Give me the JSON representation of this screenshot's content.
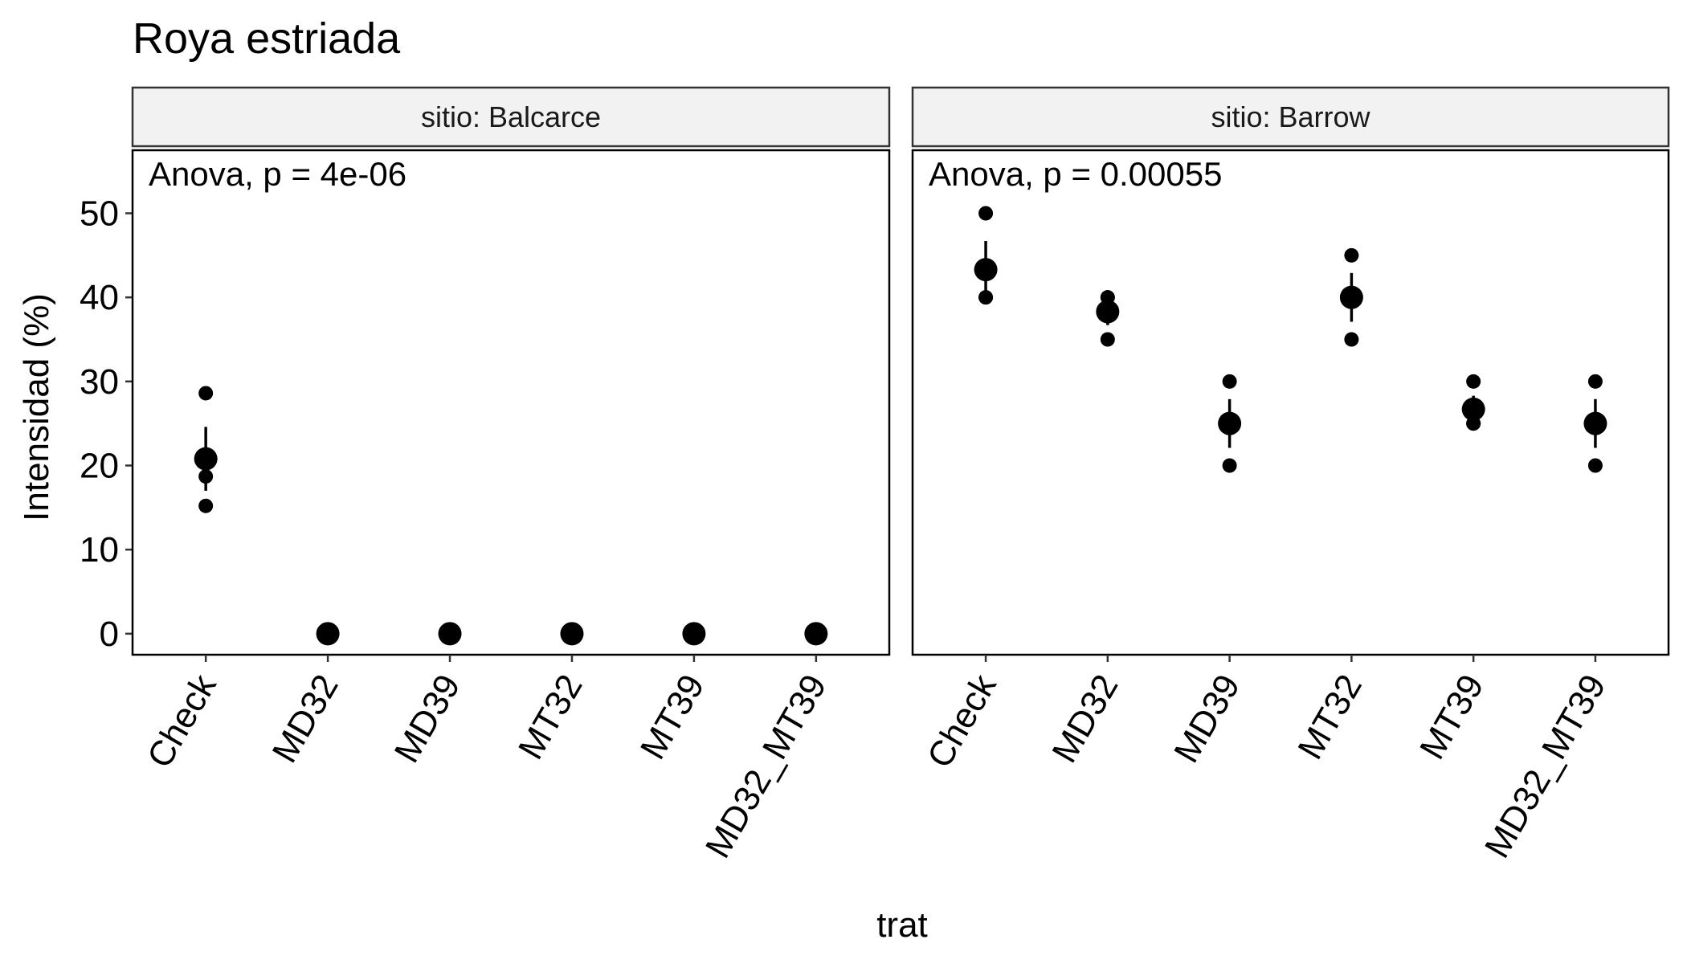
{
  "chart_data": {
    "type": "scatter",
    "title": "Roya estriada",
    "xlabel": "trat",
    "ylabel": "Intensidad (%)",
    "ylim": [
      -2.5,
      57.5
    ],
    "yticks": [
      0,
      10,
      20,
      30,
      40,
      50
    ],
    "categories": [
      "Check",
      "MD32",
      "MD39",
      "MT32",
      "MT39",
      "MD32_MT39"
    ],
    "facet_label_prefix": "sitio: ",
    "panels": [
      {
        "facet": "Balcarce",
        "strip_label": "sitio: Balcarce",
        "annotation": "Anova, p = 4e-06",
        "summary": [
          {
            "trat": "Check",
            "mean": 20.8,
            "lower": 17.0,
            "upper": 24.6
          },
          {
            "trat": "MD32",
            "mean": 0,
            "lower": 0,
            "upper": 0
          },
          {
            "trat": "MD39",
            "mean": 0,
            "lower": 0,
            "upper": 0
          },
          {
            "trat": "MT32",
            "mean": 0,
            "lower": 0,
            "upper": 0
          },
          {
            "trat": "MT39",
            "mean": 0,
            "lower": 0,
            "upper": 0
          },
          {
            "trat": "MD32_MT39",
            "mean": 0,
            "lower": 0,
            "upper": 0
          }
        ],
        "observations": [
          {
            "trat": "Check",
            "values": [
              28.6,
              18.7,
              15.2
            ]
          },
          {
            "trat": "MD32",
            "values": [
              0,
              0,
              0
            ]
          },
          {
            "trat": "MD39",
            "values": [
              0,
              0,
              0
            ]
          },
          {
            "trat": "MT32",
            "values": [
              0,
              0,
              0
            ]
          },
          {
            "trat": "MT39",
            "values": [
              0,
              0,
              0
            ]
          },
          {
            "trat": "MD32_MT39",
            "values": [
              0,
              0,
              0
            ]
          }
        ]
      },
      {
        "facet": "Barrow",
        "strip_label": "sitio: Barrow",
        "annotation": "Anova, p = 0.00055",
        "summary": [
          {
            "trat": "Check",
            "mean": 43.3,
            "lower": 40.0,
            "upper": 46.7
          },
          {
            "trat": "MD32",
            "mean": 38.3,
            "lower": 36.7,
            "upper": 40.0
          },
          {
            "trat": "MD39",
            "mean": 25.0,
            "lower": 22.1,
            "upper": 27.9
          },
          {
            "trat": "MT32",
            "mean": 40.0,
            "lower": 37.1,
            "upper": 42.9
          },
          {
            "trat": "MT39",
            "mean": 26.7,
            "lower": 25.0,
            "upper": 28.3
          },
          {
            "trat": "MD32_MT39",
            "mean": 25.0,
            "lower": 22.1,
            "upper": 27.9
          }
        ],
        "observations": [
          {
            "trat": "Check",
            "values": [
              50,
              40,
              40
            ]
          },
          {
            "trat": "MD32",
            "values": [
              40,
              40,
              35
            ]
          },
          {
            "trat": "MD39",
            "values": [
              30,
              25,
              20
            ]
          },
          {
            "trat": "MT32",
            "values": [
              45,
              40,
              35
            ]
          },
          {
            "trat": "MT39",
            "values": [
              30,
              25,
              25
            ]
          },
          {
            "trat": "MD32_MT39",
            "values": [
              30,
              25,
              20
            ]
          }
        ]
      }
    ],
    "grid": false,
    "legend": "none",
    "colors": {
      "points": "#000000",
      "strip_fill": "#f2f2f2",
      "panel_border": "#000000"
    }
  }
}
